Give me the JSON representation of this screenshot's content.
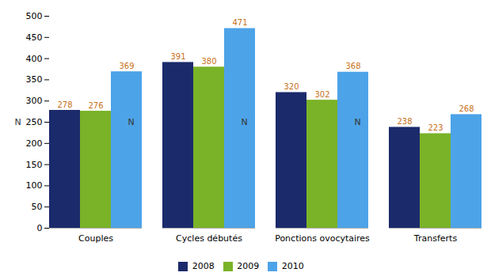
{
  "chart_data": {
    "type": "bar",
    "categories": [
      "Couples",
      "Cycles débutés",
      "Ponctions ovocytaires",
      "Transferts"
    ],
    "series": [
      {
        "name": "2008",
        "color": "#1b2a6b",
        "values": [
          278,
          391,
          320,
          238
        ]
      },
      {
        "name": "2009",
        "color": "#7ab228",
        "values": [
          276,
          380,
          302,
          223
        ]
      },
      {
        "name": "2010",
        "color": "#4da3e8",
        "values": [
          369,
          471,
          368,
          268
        ]
      }
    ],
    "ylabel": "N",
    "ylim": [
      0,
      500
    ],
    "yticks": [
      0,
      50,
      100,
      150,
      200,
      250,
      300,
      350,
      400,
      450,
      500
    ],
    "data_labels": true,
    "legend": "bottom",
    "grid": false
  }
}
